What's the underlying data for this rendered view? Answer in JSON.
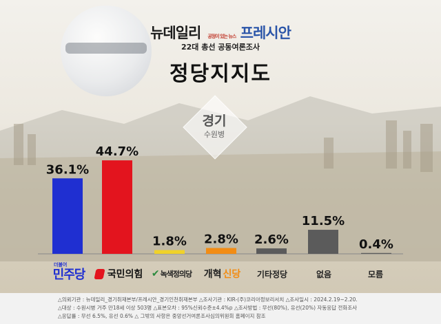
{
  "brand": {
    "outlet1": "뉴데일리",
    "outlet2": "프레시안",
    "outlet2_tag": "공정이 있는 뉴스",
    "outlet2_site": "pressian.com"
  },
  "subtitle": "22대 총선 공동여론조사",
  "title": "정당지지도",
  "region": {
    "name": "경기",
    "district": "수원병"
  },
  "chart_data": {
    "type": "bar",
    "categories": [
      "더불어민주당",
      "국민의힘",
      "녹색정의당",
      "개혁신당",
      "기타정당",
      "없음",
      "모름"
    ],
    "values": [
      36.1,
      44.7,
      1.8,
      2.8,
      2.6,
      11.5,
      0.4
    ],
    "value_labels": [
      "36.1%",
      "44.7%",
      "1.8%",
      "2.8%",
      "2.6%",
      "11.5%",
      "0.4%"
    ],
    "colors": [
      "#1f2fd1",
      "#e3141e",
      "#f0d22a",
      "#f28c14",
      "#5b5b5b",
      "#5b5b5b",
      "#5b5b5b"
    ],
    "ylim": [
      0,
      50
    ],
    "grid": false
  },
  "parties": {
    "dem_small": "더불어",
    "dem": "민주당",
    "ppp": "국민의힘",
    "green": "녹색정의당",
    "reform1": "개혁",
    "reform2": "신당",
    "other": "기타정당",
    "none": "없음",
    "dontknow": "모름"
  },
  "footer": {
    "line1": "△의뢰기관 : 뉴데일리_경기취재본부/프레시안_경기인천취재본부 △조사기관 : KIR-(주)코리아정보리서치 △조사일시 : 2024.2.19~2.20.",
    "line2": "△대상 : 수원시병 거주 만18세 이상 503명 △표본오차 : 95%신뢰수준±4.4%p △조사방법 : 무선(80%), 유선(20%) 자동응답 전화조사",
    "line3": "△응답률 : 무선 6.5%, 유선 0.6% △ 그밖의 사항은 중앙선거여론조사심의위원회 홈페이지 참조"
  },
  "colors": {
    "accent_blue": "#2a54a8",
    "ppp_red": "#e3141e",
    "green": "#2b8a3e",
    "reform_orange": "#f28c14"
  }
}
